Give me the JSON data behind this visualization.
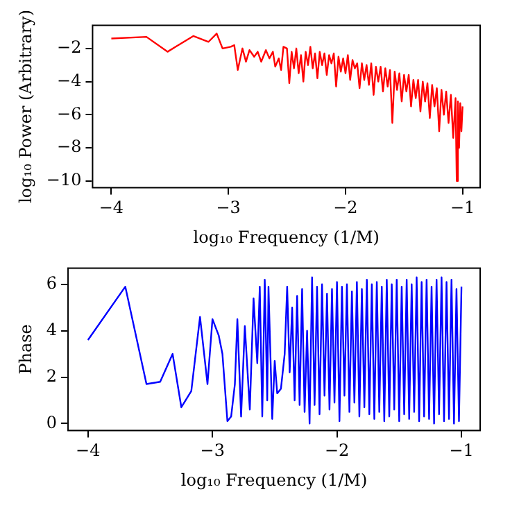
{
  "chart_data": [
    {
      "type": "line",
      "xlabel": "log₁₀ Frequency (1/M)",
      "ylabel": "log₁₀ Power (Arbitrary)",
      "xlim": [
        -4.16,
        -0.85
      ],
      "xticks": [
        -4,
        -3,
        -2,
        -1
      ],
      "ylim": [
        -10.4,
        -0.6
      ],
      "yticks": [
        -10,
        -8,
        -6,
        -4,
        -2
      ],
      "marker": "none",
      "x": [
        -4,
        -3.7,
        -3.52,
        -3.3,
        -3.17,
        -3.1,
        -3.05,
        -2.98,
        -2.95,
        -2.92,
        -2.88,
        -2.85,
        -2.82,
        -2.78,
        -2.75,
        -2.72,
        -2.68,
        -2.65,
        -2.62,
        -2.6,
        -2.57,
        -2.55,
        -2.53,
        -2.5,
        -2.48,
        -2.46,
        -2.44,
        -2.42,
        -2.4,
        -2.38,
        -2.36,
        -2.34,
        -2.32,
        -2.3,
        -2.28,
        -2.26,
        -2.24,
        -2.22,
        -2.2,
        -2.18,
        -2.16,
        -2.14,
        -2.12,
        -2.1,
        -2.08,
        -2.06,
        -2.04,
        -2.02,
        -2,
        -1.98,
        -1.96,
        -1.94,
        -1.92,
        -1.9,
        -1.88,
        -1.86,
        -1.84,
        -1.82,
        -1.8,
        -1.78,
        -1.76,
        -1.74,
        -1.72,
        -1.7,
        -1.68,
        -1.66,
        -1.64,
        -1.62,
        -1.6,
        -1.58,
        -1.56,
        -1.54,
        -1.52,
        -1.5,
        -1.48,
        -1.46,
        -1.44,
        -1.42,
        -1.4,
        -1.38,
        -1.36,
        -1.34,
        -1.32,
        -1.3,
        -1.28,
        -1.26,
        -1.24,
        -1.22,
        -1.2,
        -1.18,
        -1.16,
        -1.14,
        -1.12,
        -1.1,
        -1.08,
        -1.06,
        -1.05,
        -1.04,
        -1.03,
        -1.02,
        -1.01,
        -1
      ],
      "series": [
        {
          "color": "#ff0000",
          "values": [
            -1.4,
            -1.3,
            -2.2,
            -1.25,
            -1.6,
            -1.1,
            -2,
            -1.9,
            -1.8,
            -3.3,
            -2,
            -2.8,
            -2.1,
            -2.5,
            -2.2,
            -2.8,
            -2.1,
            -2.6,
            -2.2,
            -3.1,
            -2.6,
            -3.3,
            -1.9,
            -2,
            -4.1,
            -2.2,
            -3.2,
            -2,
            -3.5,
            -2.4,
            -4,
            -2.2,
            -3,
            -1.9,
            -3.2,
            -2.3,
            -3.8,
            -2.2,
            -3,
            -2.3,
            -3.6,
            -2.4,
            -2.9,
            -2.3,
            -4.3,
            -2.5,
            -3.4,
            -2.6,
            -3.5,
            -2.4,
            -3.9,
            -2.7,
            -3.2,
            -2.9,
            -4.4,
            -2.9,
            -3.9,
            -3,
            -4.2,
            -2.9,
            -4.8,
            -3.1,
            -4,
            -3.1,
            -4.6,
            -3.2,
            -4.3,
            -3.3,
            -6.5,
            -3.4,
            -4.5,
            -3.5,
            -5.2,
            -3.6,
            -4.6,
            -3.6,
            -5.5,
            -3.9,
            -5,
            -3.9,
            -5.8,
            -4,
            -5.2,
            -4.1,
            -6.2,
            -4.2,
            -5.5,
            -4.4,
            -7,
            -4.5,
            -6,
            -4.6,
            -6.5,
            -4.8,
            -7.4,
            -5,
            -10,
            -5.2,
            -8,
            -5.3,
            -7,
            -5.5
          ]
        }
      ]
    },
    {
      "type": "line",
      "xlabel": "log₁₀ Frequency (1/M)",
      "ylabel": "Phase",
      "xlim": [
        -4.16,
        -0.85
      ],
      "xticks": [
        -4,
        -3,
        -2,
        -1
      ],
      "ylim": [
        -0.3,
        6.7
      ],
      "yticks": [
        0,
        2,
        4,
        6
      ],
      "marker": "none",
      "x": [
        -4,
        -3.7,
        -3.53,
        -3.42,
        -3.32,
        -3.25,
        -3.17,
        -3.1,
        -3.04,
        -3,
        -2.95,
        -2.92,
        -2.88,
        -2.85,
        -2.82,
        -2.8,
        -2.77,
        -2.74,
        -2.7,
        -2.67,
        -2.64,
        -2.62,
        -2.6,
        -2.58,
        -2.56,
        -2.55,
        -2.52,
        -2.5,
        -2.48,
        -2.45,
        -2.42,
        -2.4,
        -2.38,
        -2.36,
        -2.34,
        -2.32,
        -2.3,
        -2.28,
        -2.26,
        -2.24,
        -2.22,
        -2.2,
        -2.18,
        -2.16,
        -2.14,
        -2.12,
        -2.1,
        -2.08,
        -2.06,
        -2.04,
        -2.02,
        -2,
        -1.98,
        -1.96,
        -1.94,
        -1.92,
        -1.9,
        -1.88,
        -1.86,
        -1.84,
        -1.82,
        -1.8,
        -1.78,
        -1.76,
        -1.74,
        -1.72,
        -1.7,
        -1.68,
        -1.66,
        -1.64,
        -1.62,
        -1.6,
        -1.58,
        -1.56,
        -1.54,
        -1.52,
        -1.5,
        -1.48,
        -1.46,
        -1.44,
        -1.42,
        -1.4,
        -1.38,
        -1.36,
        -1.34,
        -1.32,
        -1.3,
        -1.28,
        -1.26,
        -1.24,
        -1.22,
        -1.2,
        -1.18,
        -1.16,
        -1.14,
        -1.12,
        -1.1,
        -1.08,
        -1.06,
        -1.04,
        -1.02,
        -1
      ],
      "series": [
        {
          "color": "#0000ff",
          "values": [
            3.6,
            5.9,
            1.7,
            1.8,
            3,
            0.7,
            1.4,
            4.6,
            1.7,
            4.5,
            3.8,
            3,
            0.1,
            0.3,
            1.7,
            4.5,
            0.3,
            4.2,
            0.6,
            5.4,
            2.6,
            5.9,
            0.3,
            6.2,
            1,
            5.9,
            0.2,
            2.7,
            1.3,
            1.5,
            3,
            5.9,
            2.2,
            5,
            1,
            5.5,
            0.8,
            5.8,
            0.5,
            4,
            0,
            6.3,
            0.8,
            5.9,
            0.4,
            6,
            1.2,
            5.6,
            0.6,
            5.8,
            0.9,
            6.1,
            0.1,
            5.9,
            1.2,
            6,
            0.5,
            5.7,
            0.9,
            6.1,
            0.3,
            5.8,
            0.7,
            6.2,
            0.4,
            6,
            0.2,
            6.1,
            0.5,
            5.9,
            0.1,
            6.2,
            0.3,
            6,
            0.6,
            6.2,
            0.1,
            5.9,
            0.4,
            6.2,
            0.2,
            6,
            0.5,
            6.3,
            0.1,
            6.1,
            0.3,
            6.2,
            0.2,
            5.9,
            0,
            6.2,
            0.4,
            6.3,
            0.1,
            6.1,
            0.2,
            6.2,
            0,
            5.8,
            0.1,
            5.9
          ]
        }
      ]
    }
  ]
}
